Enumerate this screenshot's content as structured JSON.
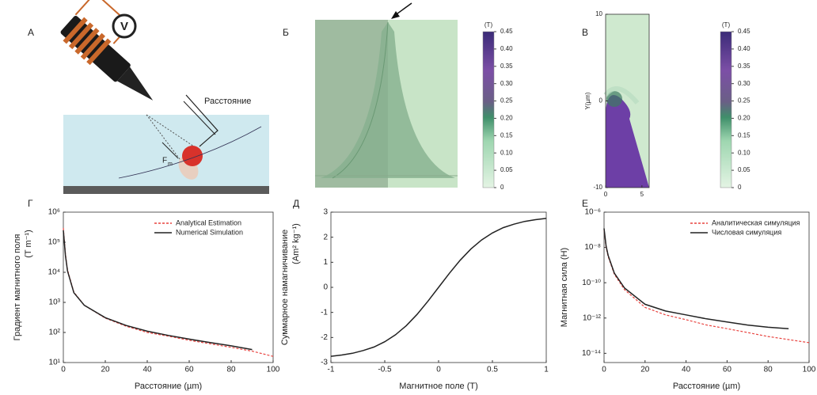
{
  "panel_a": {
    "label": "А",
    "voltmeter": "V",
    "distance_label": "Расстояние",
    "force_label": "F",
    "force_subscript": "m"
  },
  "chart_data": [
    {
      "type": "heatmap",
      "panel_label": "Б",
      "colorbar": {
        "unit": "(T)",
        "clim": [
          0,
          0.45
        ],
        "cticks": [
          0,
          0.05,
          {
            "value": 0.1,
            "label": "0.10"
          },
          0.15,
          {
            "value": 0.2,
            "label": "0.20"
          },
          0.25,
          {
            "value": 0.3,
            "label": "0.30"
          },
          0.35,
          {
            "value": 0.4,
            "label": "0.40"
          },
          0.45
        ]
      }
    },
    {
      "type": "heatmap",
      "panel_label": "В",
      "ylabel": "Y(µm)",
      "xlim": [
        0,
        6
      ],
      "xticks": [
        0,
        5
      ],
      "ylim": [
        -10,
        10
      ],
      "yticks": [
        -10,
        0,
        10
      ],
      "colorbar": {
        "unit": "(T)",
        "clim": [
          0,
          0.45
        ],
        "cticks": [
          0,
          0.05,
          {
            "value": 0.1,
            "label": "0.10"
          },
          0.15,
          {
            "value": 0.2,
            "label": "0.20"
          },
          0.25,
          {
            "value": 0.3,
            "label": "0.30"
          },
          0.35,
          {
            "value": 0.4,
            "label": "0.40"
          },
          0.45
        ]
      }
    },
    {
      "type": "line",
      "panel_label": "Г",
      "ylabel": "Градиент магнитного поля",
      "ylabel_unit": "(T m⁻¹)",
      "xlabel": "Расстояние  (µm)",
      "ylog": true,
      "legend": "upper right",
      "xlim": [
        0,
        100
      ],
      "xticks": [
        0,
        20,
        40,
        60,
        80,
        100
      ],
      "ylim": [
        10,
        1000000
      ],
      "yticks": [
        {
          "value": 10,
          "label": "10¹"
        },
        {
          "value": 100,
          "label": "10²"
        },
        {
          "value": 1000,
          "label": "10³"
        },
        {
          "value": 10000,
          "label": "10⁴"
        },
        {
          "value": 100000,
          "label": "10⁵"
        },
        {
          "value": 1000000,
          "label": "10⁶"
        }
      ],
      "x": [
        0,
        1,
        2,
        5,
        10,
        20,
        30,
        40,
        50,
        60,
        70,
        80,
        90,
        100
      ],
      "series": [
        {
          "name": "Analytical Estimation",
          "color": "#e8433f",
          "dashed": true,
          "values": [
            300000,
            40000,
            12000,
            2200,
            800,
            300,
            160,
            100,
            75,
            55,
            42,
            32,
            24,
            16
          ]
        },
        {
          "name": "Numerical Simulation",
          "color": "#222222",
          "dashed": false,
          "values": [
            250000,
            35000,
            11000,
            2100,
            800,
            310,
            170,
            110,
            80,
            60,
            46,
            36,
            27,
            null
          ]
        }
      ]
    },
    {
      "type": "line",
      "panel_label": "Д",
      "ylabel": "Суммарное намагничивание",
      "ylabel_unit": "(Am² kg⁻¹)",
      "xlabel": "Магнитное поле   (T)",
      "ylog": false,
      "xlim": [
        -1,
        1
      ],
      "xticks": [
        -1,
        -0.5,
        0,
        0.5,
        1
      ],
      "ylim": [
        -3,
        3
      ],
      "yticks": [
        -3,
        -2,
        -1,
        0,
        1,
        2,
        3
      ],
      "x": [
        -1,
        -0.9,
        -0.8,
        -0.7,
        -0.6,
        -0.5,
        -0.4,
        -0.3,
        -0.2,
        -0.1,
        0,
        0.1,
        0.2,
        0.3,
        0.4,
        0.5,
        0.6,
        0.7,
        0.8,
        0.9,
        1
      ],
      "series": [
        {
          "color": "#222222",
          "dashed": false,
          "values": [
            -2.75,
            -2.7,
            -2.63,
            -2.52,
            -2.38,
            -2.17,
            -1.89,
            -1.53,
            -1.08,
            -0.56,
            0,
            0.56,
            1.08,
            1.53,
            1.89,
            2.17,
            2.38,
            2.52,
            2.63,
            2.7,
            2.75
          ]
        }
      ]
    },
    {
      "type": "line",
      "panel_label": "Е",
      "ylabel": "Магнитная сила (H)",
      "xlabel": "Расстояние  (µm)",
      "ylog": true,
      "legend": "upper right",
      "xlim": [
        0,
        100
      ],
      "xticks": [
        0,
        20,
        40,
        60,
        80,
        100
      ],
      "ylim": [
        3e-15,
        1e-06
      ],
      "yticks": [
        {
          "value": 1e-14,
          "label": "10⁻¹⁴"
        },
        {
          "value": 1e-12,
          "label": "10⁻¹²"
        },
        {
          "value": 1e-10,
          "label": "10⁻¹⁰"
        },
        {
          "value": 1e-08,
          "label": "10⁻⁸"
        },
        {
          "value": 1e-06,
          "label": "10⁻⁶"
        }
      ],
      "x": [
        0,
        1,
        2,
        5,
        10,
        20,
        30,
        40,
        50,
        60,
        70,
        80,
        90,
        100
      ],
      "series": [
        {
          "name": "Аналитическая симуляция",
          "color": "#e8433f",
          "dashed": true,
          "values": [
            1e-07,
            1e-08,
            3e-09,
            3e-10,
            4e-11,
            4e-12,
            1.5e-12,
            8e-13,
            4e-13,
            2.5e-13,
            1.5e-13,
            9e-14,
            6e-14,
            4e-14
          ]
        },
        {
          "name": "Числовая симуляция",
          "color": "#222222",
          "dashed": false,
          "values": [
            1.2e-07,
            1.2e-08,
            3.5e-09,
            3.5e-10,
            5e-11,
            6e-12,
            2.5e-12,
            1.5e-12,
            9e-13,
            6e-13,
            4e-13,
            3e-13,
            2.5e-13,
            null
          ]
        }
      ]
    }
  ]
}
